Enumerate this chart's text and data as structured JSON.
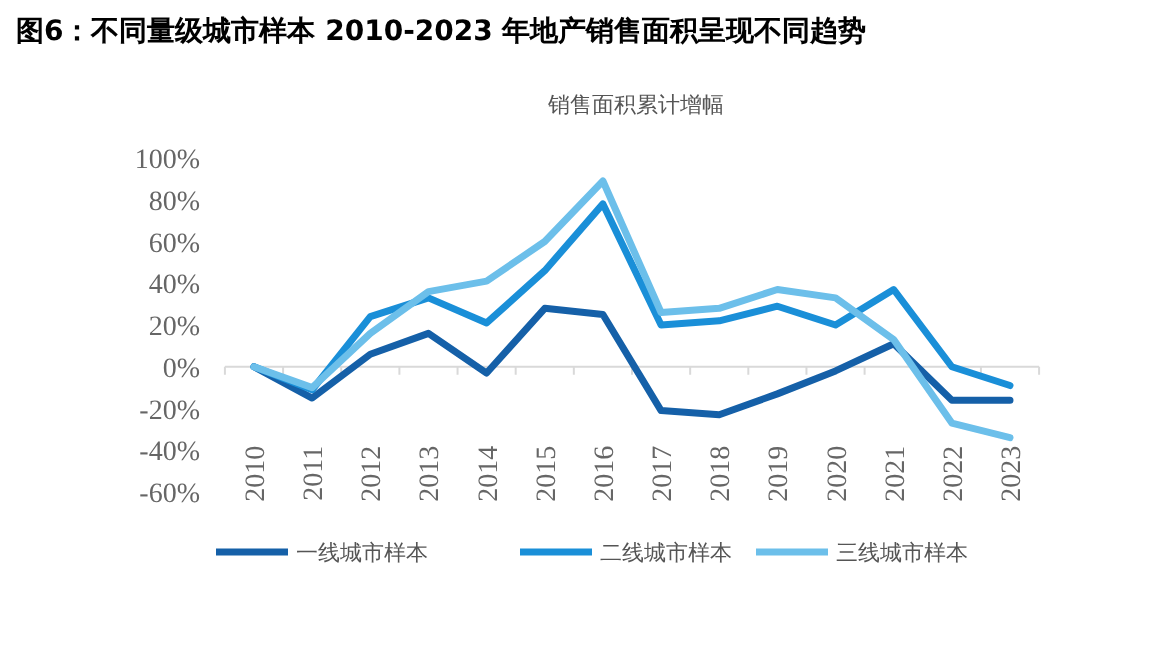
{
  "chart_data": {
    "type": "line",
    "title": "图6：不同量级城市样本 2010-2023 年地产销售面积呈现不同趋势",
    "subtitle": "销售面积累计增幅",
    "categories": [
      "2010",
      "2011",
      "2012",
      "2013",
      "2014",
      "2015",
      "2016",
      "2017",
      "2018",
      "2019",
      "2020",
      "2021",
      "2022",
      "2023"
    ],
    "series": [
      {
        "name": "一线城市样本",
        "color": "#1560a8",
        "values": [
          0,
          -15,
          6,
          16,
          -3,
          28,
          25,
          -21,
          -23,
          -13,
          -2,
          11,
          -16,
          -16
        ]
      },
      {
        "name": "二线城市样本",
        "color": "#1a8fd8",
        "values": [
          0,
          -11,
          24,
          33,
          21,
          46,
          78,
          20,
          22,
          29,
          20,
          37,
          0,
          -9
        ]
      },
      {
        "name": "三线城市样本",
        "color": "#6cbfea",
        "values": [
          0,
          -10,
          16,
          36,
          41,
          60,
          89,
          26,
          28,
          37,
          33,
          13,
          -27,
          -34
        ]
      }
    ],
    "ylim": [
      -60,
      100
    ],
    "yticks": [
      {
        "value": -60,
        "label": "-60%"
      },
      {
        "value": -40,
        "label": "-40%"
      },
      {
        "value": -20,
        "label": "-20%"
      },
      {
        "value": 0,
        "label": "0%"
      },
      {
        "value": 20,
        "label": "20%"
      },
      {
        "value": 40,
        "label": "40%"
      },
      {
        "value": 60,
        "label": "60%"
      },
      {
        "value": 80,
        "label": "80%"
      },
      {
        "value": 100,
        "label": "100%"
      }
    ],
    "legend": "bottom",
    "marker": "none",
    "line_style": "solid"
  }
}
